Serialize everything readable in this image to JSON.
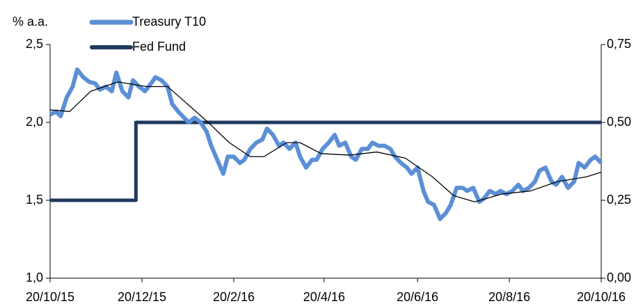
{
  "chart_data": {
    "type": "line",
    "y_label": "% a.a.",
    "xlim": [
      0,
      366
    ],
    "xticks": [
      {
        "value": 0,
        "label": "20/10/15"
      },
      {
        "value": 61,
        "label": "20/12/15"
      },
      {
        "value": 122,
        "label": "20/2/16"
      },
      {
        "value": 182,
        "label": "20/4/16"
      },
      {
        "value": 244,
        "label": "20/6/16"
      },
      {
        "value": 305,
        "label": "20/8/16"
      },
      {
        "value": 366,
        "label": "20/10/16"
      }
    ],
    "ylim": [
      1.0,
      2.5
    ],
    "yticks": [
      {
        "value": 1.0,
        "label": "1,0"
      },
      {
        "value": 1.5,
        "label": "1,5"
      },
      {
        "value": 2.0,
        "label": "2,0"
      },
      {
        "value": 2.5,
        "label": "2,5"
      }
    ],
    "y2lim": [
      0,
      0.75
    ],
    "y2ticks": [
      {
        "value": 0,
        "label": "0,00"
      },
      {
        "value": 0.25,
        "label": "0,25"
      },
      {
        "value": 0.5,
        "label": "0,50"
      },
      {
        "value": 0.75,
        "label": "0,75"
      }
    ],
    "series": [
      {
        "name": "Treasury T10",
        "color": "#5b8fd6",
        "width": 6,
        "x": [
          0,
          4,
          7,
          11,
          15,
          18,
          22,
          26,
          30,
          33,
          37,
          41,
          44,
          48,
          52,
          55,
          59,
          63,
          67,
          70,
          74,
          78,
          81,
          85,
          89,
          92,
          96,
          100,
          104,
          107,
          111,
          115,
          118,
          122,
          126,
          129,
          133,
          137,
          141,
          144,
          148,
          152,
          155,
          159,
          163,
          166,
          170,
          174,
          177,
          181,
          185,
          189,
          192,
          196,
          200,
          203,
          207,
          211,
          214,
          218,
          222,
          226,
          229,
          233,
          237,
          240,
          244,
          248,
          251,
          255,
          259,
          263,
          266,
          270,
          274,
          277,
          281,
          285,
          288,
          292,
          296,
          299,
          303,
          307,
          311,
          314,
          318,
          322,
          325,
          329,
          333,
          336,
          340,
          344,
          348,
          351,
          355,
          359,
          362,
          366
        ],
        "values": [
          2.05,
          2.07,
          2.04,
          2.16,
          2.23,
          2.34,
          2.29,
          2.26,
          2.25,
          2.21,
          2.23,
          2.2,
          2.32,
          2.2,
          2.16,
          2.27,
          2.23,
          2.2,
          2.25,
          2.29,
          2.27,
          2.23,
          2.12,
          2.07,
          2.03,
          2.0,
          2.03,
          2.0,
          1.94,
          1.85,
          1.76,
          1.67,
          1.78,
          1.78,
          1.74,
          1.76,
          1.83,
          1.87,
          1.89,
          1.96,
          1.92,
          1.85,
          1.87,
          1.83,
          1.87,
          1.78,
          1.71,
          1.76,
          1.76,
          1.83,
          1.87,
          1.92,
          1.85,
          1.87,
          1.78,
          1.76,
          1.83,
          1.83,
          1.87,
          1.85,
          1.85,
          1.83,
          1.78,
          1.74,
          1.71,
          1.67,
          1.71,
          1.56,
          1.49,
          1.47,
          1.38,
          1.42,
          1.47,
          1.58,
          1.58,
          1.56,
          1.58,
          1.49,
          1.51,
          1.56,
          1.54,
          1.56,
          1.54,
          1.56,
          1.6,
          1.56,
          1.58,
          1.62,
          1.69,
          1.71,
          1.62,
          1.6,
          1.65,
          1.58,
          1.62,
          1.74,
          1.71,
          1.76,
          1.78,
          1.74
        ]
      },
      {
        "color": "#000000",
        "width": 1.3,
        "x": [
          0,
          13,
          27,
          45,
          64,
          78,
          91,
          105,
          119,
          133,
          142,
          157,
          166,
          180,
          199,
          217,
          236,
          254,
          268,
          282,
          300,
          319,
          337,
          356,
          366
        ],
        "values": [
          2.08,
          2.07,
          2.2,
          2.26,
          2.23,
          2.23,
          2.12,
          2.0,
          1.87,
          1.78,
          1.78,
          1.87,
          1.87,
          1.8,
          1.79,
          1.81,
          1.77,
          1.65,
          1.53,
          1.49,
          1.54,
          1.56,
          1.62,
          1.65,
          1.68
        ]
      },
      {
        "name": "Fed Fund",
        "color": "#1f3a5f",
        "width": 5,
        "axis": "y2",
        "step": true,
        "x": [
          0,
          57,
          366
        ],
        "values": [
          0.25,
          0.5,
          0.5
        ]
      }
    ]
  }
}
